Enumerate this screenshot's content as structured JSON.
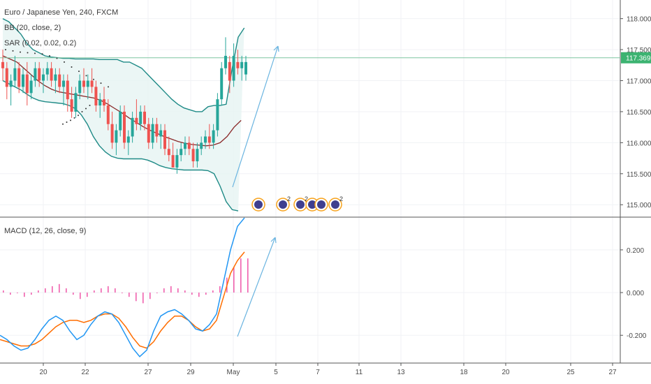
{
  "legend": {
    "symbol": "Euro / Japanese Yen, 240, FXCM",
    "bb": "BB (20, close, 2)",
    "sar": "SAR (0.02, 0.02, 0.2)",
    "macd": "MACD (12, 26, close, 9)"
  },
  "last_price": "117.369",
  "colors": {
    "up": "#26a69a",
    "down": "#ef5350",
    "bb_band": "#1e8a86",
    "bb_fill": "#e6f4f3",
    "bb_basis": "#8b2a2a",
    "sar": "#333333",
    "price_line": "#7fc6a0",
    "macd_line": "#2196f3",
    "signal_line": "#ff6d00",
    "hist": "#e91e8c",
    "arrow": "#6ab4e0",
    "marker_ring": "#f7a21b",
    "marker_fill": "#3f3f8f"
  },
  "chart_data": [
    {
      "type": "candlestick",
      "title": "Euro / Japanese Yen, 240, FXCM",
      "x_ticks": [
        "20",
        "22",
        "27",
        "29",
        "May",
        "5",
        "7",
        "11",
        "13",
        "18",
        "20",
        "25",
        "27"
      ],
      "ylim": [
        114.8,
        118.3
      ],
      "y_ticks": [
        "118.000",
        "117.500",
        "117.000",
        "116.500",
        "116.000",
        "115.500",
        "115.000"
      ],
      "candles": [
        [
          117.3,
          117.5,
          117.0,
          117.2
        ],
        [
          117.2,
          117.3,
          116.7,
          116.9
        ],
        [
          116.9,
          117.1,
          116.6,
          117.0
        ],
        [
          117.0,
          117.4,
          116.9,
          117.2
        ],
        [
          117.2,
          117.3,
          116.8,
          116.9
        ],
        [
          116.9,
          117.2,
          116.8,
          117.1
        ],
        [
          117.1,
          117.3,
          116.6,
          116.8
        ],
        [
          116.8,
          117.1,
          116.7,
          117.0
        ],
        [
          117.0,
          117.3,
          116.9,
          117.2
        ],
        [
          117.2,
          117.3,
          116.9,
          117.0
        ],
        [
          117.0,
          117.2,
          116.8,
          117.1
        ],
        [
          117.1,
          117.3,
          117.0,
          117.2
        ],
        [
          117.2,
          117.3,
          116.9,
          117.0
        ],
        [
          117.0,
          117.2,
          116.8,
          117.1
        ],
        [
          117.1,
          117.2,
          116.8,
          116.9
        ],
        [
          116.9,
          117.1,
          116.6,
          117.0
        ],
        [
          117.0,
          117.1,
          116.5,
          116.7
        ],
        [
          116.7,
          116.9,
          116.4,
          116.5
        ],
        [
          116.5,
          116.9,
          116.4,
          116.8
        ],
        [
          116.8,
          117.1,
          116.7,
          117.0
        ],
        [
          117.0,
          117.2,
          116.8,
          116.9
        ],
        [
          116.9,
          117.1,
          116.7,
          117.0
        ],
        [
          117.0,
          117.2,
          116.8,
          116.9
        ],
        [
          116.9,
          117.0,
          116.5,
          116.6
        ],
        [
          116.6,
          116.8,
          116.4,
          116.7
        ],
        [
          116.7,
          116.9,
          116.5,
          116.6
        ],
        [
          116.6,
          116.7,
          116.2,
          116.3
        ],
        [
          116.3,
          116.5,
          115.9,
          116.0
        ],
        [
          116.0,
          116.3,
          115.8,
          116.2
        ],
        [
          116.2,
          116.6,
          116.1,
          116.5
        ],
        [
          116.5,
          116.6,
          115.9,
          116.0
        ],
        [
          116.0,
          116.2,
          115.8,
          116.1
        ],
        [
          116.1,
          116.5,
          116.0,
          116.4
        ],
        [
          116.4,
          116.7,
          116.2,
          116.3
        ],
        [
          116.3,
          116.6,
          116.2,
          116.5
        ],
        [
          116.5,
          116.6,
          116.2,
          116.3
        ],
        [
          116.3,
          116.4,
          115.9,
          116.0
        ],
        [
          116.0,
          116.4,
          115.9,
          116.3
        ],
        [
          116.3,
          116.4,
          116.0,
          116.1
        ],
        [
          116.1,
          116.3,
          115.9,
          116.2
        ],
        [
          116.2,
          116.3,
          115.8,
          115.9
        ],
        [
          115.9,
          116.1,
          115.7,
          115.8
        ],
        [
          115.8,
          116.0,
          115.6,
          115.6
        ],
        [
          115.6,
          115.9,
          115.5,
          115.8
        ],
        [
          115.8,
          116.0,
          115.7,
          115.9
        ],
        [
          115.9,
          116.1,
          115.8,
          116.0
        ],
        [
          116.0,
          116.1,
          115.8,
          115.9
        ],
        [
          115.9,
          116.0,
          115.6,
          115.7
        ],
        [
          115.7,
          116.0,
          115.6,
          115.9
        ],
        [
          115.9,
          116.1,
          115.8,
          116.0
        ],
        [
          116.0,
          116.2,
          115.9,
          116.1
        ],
        [
          116.1,
          116.3,
          115.9,
          116.0
        ],
        [
          116.0,
          116.3,
          115.9,
          116.2
        ],
        [
          116.2,
          116.8,
          116.1,
          116.7
        ],
        [
          116.7,
          117.3,
          116.6,
          117.2
        ],
        [
          117.2,
          117.7,
          117.1,
          117.4
        ],
        [
          117.3,
          117.4,
          116.8,
          117.0
        ],
        [
          117.0,
          117.6,
          116.9,
          117.4
        ],
        [
          117.3,
          117.5,
          117.1,
          117.2
        ],
        [
          117.2,
          117.4,
          117.0,
          117.3
        ],
        [
          117.1,
          117.4,
          117.0,
          117.3
        ]
      ],
      "bb_upper": [
        118.0,
        117.95,
        117.85,
        117.75,
        117.6,
        117.5,
        117.45,
        117.4,
        117.38,
        117.37,
        117.36,
        117.36,
        117.35,
        117.35,
        117.35,
        117.35,
        117.34,
        117.34,
        117.34,
        117.34,
        117.3,
        117.3,
        117.25,
        117.2,
        117.1,
        117.0,
        116.9,
        116.8,
        116.7,
        116.62,
        116.56,
        116.53,
        116.5,
        116.5,
        116.58,
        116.6,
        116.6,
        116.62,
        117.2,
        117.7,
        117.85
      ],
      "bb_upper_x_start": 0,
      "bb_lower": [
        117.0,
        116.95,
        116.9,
        116.85,
        116.78,
        116.72,
        116.68,
        116.66,
        116.65,
        116.64,
        116.63,
        116.6,
        116.55,
        116.45,
        116.3,
        116.1,
        115.95,
        115.85,
        115.78,
        115.75,
        115.74,
        115.74,
        115.74,
        115.74,
        115.72,
        115.68,
        115.63,
        115.6,
        115.58,
        115.57,
        115.56,
        115.56,
        115.56,
        115.56,
        115.55,
        115.5,
        115.3,
        115.05,
        114.92,
        114.9
      ],
      "bb_basis": [
        117.4,
        117.35,
        117.3,
        117.2,
        117.1,
        117.0,
        116.92,
        116.86,
        116.82,
        116.8,
        116.78,
        116.76,
        116.74,
        116.72,
        116.68,
        116.62,
        116.55,
        116.48,
        116.4,
        116.33,
        116.26,
        116.2,
        116.15,
        116.1,
        116.06,
        116.02,
        115.99,
        115.97,
        115.96,
        115.95,
        115.96,
        116.0,
        116.1,
        116.25,
        116.36
      ],
      "sar_upper": [
        117.5,
        117.48,
        117.46,
        117.45,
        117.44,
        117.43,
        117.4,
        117.36,
        117.3,
        117.22,
        117.15,
        117.08,
        117.02,
        116.96,
        116.9
      ],
      "sar_lower": [
        116.3,
        116.33,
        116.36,
        116.4,
        116.44,
        116.5,
        116.55,
        116.6
      ],
      "macd": {
        "ylim": [
          -0.33,
          0.35
        ],
        "y_ticks": [
          "0.200",
          "0.000",
          "-0.200"
        ],
        "macd_line": [
          -0.2,
          -0.22,
          -0.25,
          -0.27,
          -0.26,
          -0.22,
          -0.17,
          -0.13,
          -0.11,
          -0.13,
          -0.18,
          -0.22,
          -0.2,
          -0.15,
          -0.11,
          -0.09,
          -0.1,
          -0.14,
          -0.2,
          -0.26,
          -0.3,
          -0.27,
          -0.18,
          -0.11,
          -0.09,
          -0.08,
          -0.1,
          -0.13,
          -0.17,
          -0.18,
          -0.15,
          -0.1,
          0.05,
          0.2,
          0.31,
          0.35
        ],
        "signal_line": [
          -0.22,
          -0.23,
          -0.24,
          -0.25,
          -0.25,
          -0.24,
          -0.22,
          -0.19,
          -0.16,
          -0.14,
          -0.13,
          -0.13,
          -0.14,
          -0.13,
          -0.11,
          -0.1,
          -0.1,
          -0.12,
          -0.16,
          -0.21,
          -0.25,
          -0.26,
          -0.23,
          -0.18,
          -0.14,
          -0.11,
          -0.11,
          -0.13,
          -0.16,
          -0.18,
          -0.17,
          -0.13,
          -0.02,
          0.09,
          0.15,
          0.19
        ],
        "histogram": [
          0.01,
          -0.01,
          0.0,
          -0.02,
          -0.01,
          0.01,
          0.02,
          0.03,
          0.04,
          0.02,
          -0.01,
          -0.03,
          -0.02,
          0.01,
          0.02,
          0.03,
          0.02,
          0.0,
          -0.02,
          -0.04,
          -0.05,
          -0.03,
          0.0,
          0.02,
          0.03,
          0.02,
          0.01,
          -0.01,
          -0.02,
          -0.01,
          0.01,
          0.03,
          0.07,
          0.12,
          0.16,
          0.16
        ]
      },
      "event_markers": [
        {
          "label": ""
        },
        {
          "label": "2"
        },
        {
          "label": "2"
        },
        {
          "label": ""
        },
        {
          "label": ""
        },
        {
          "label": "2"
        }
      ]
    }
  ]
}
